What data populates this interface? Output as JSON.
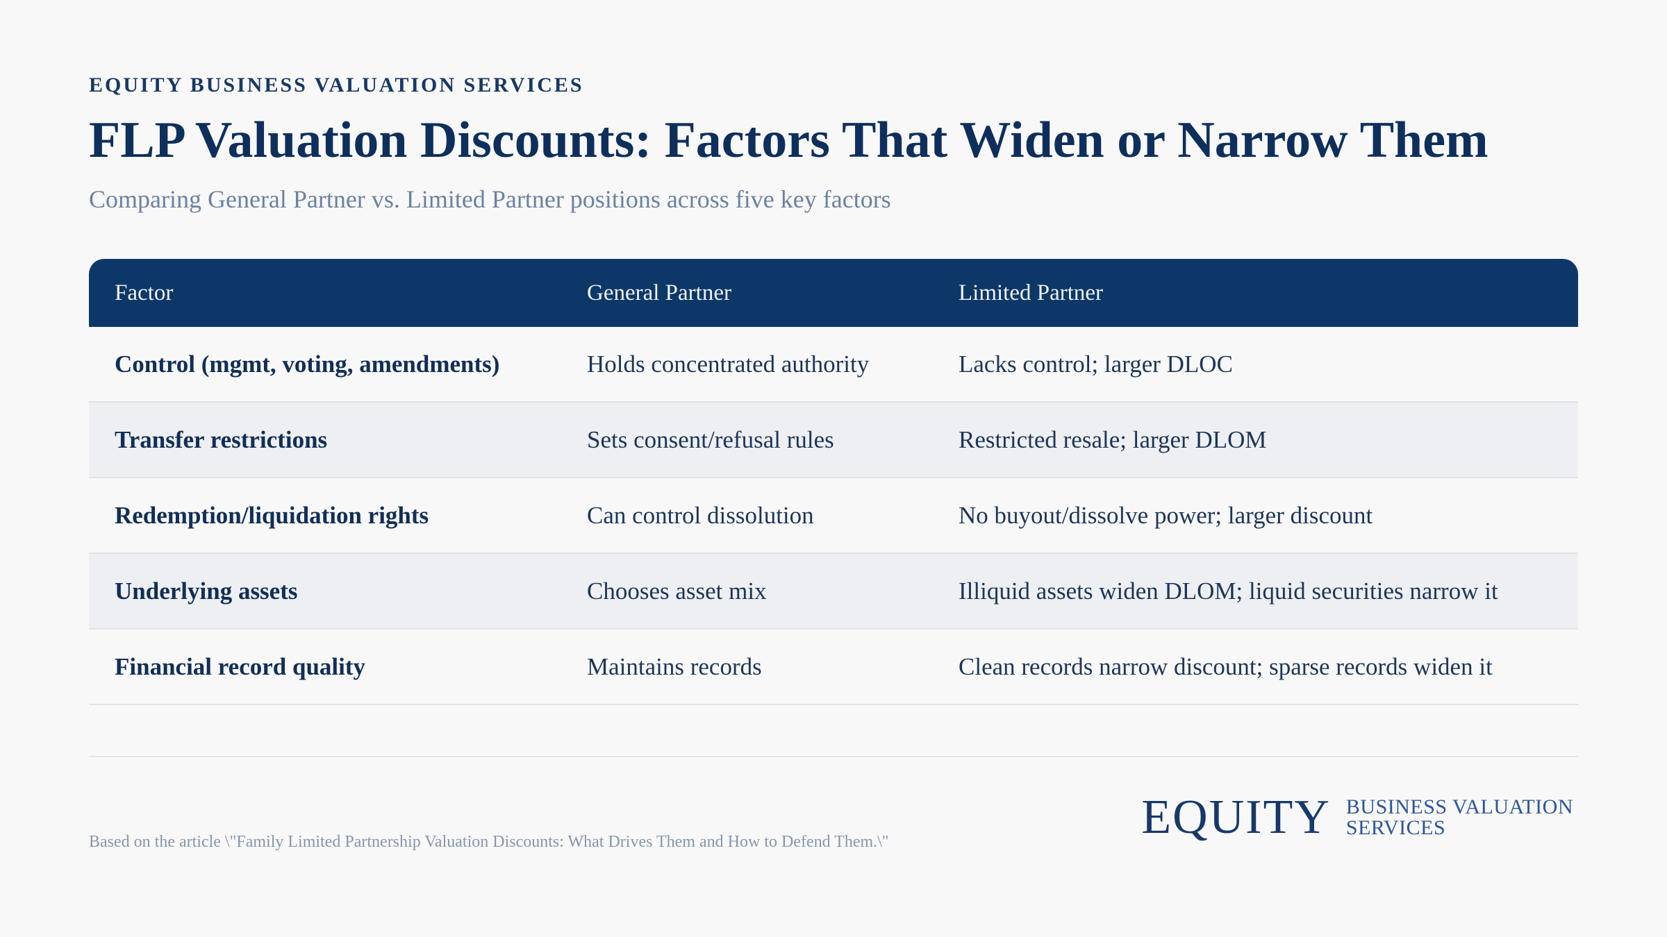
{
  "header": {
    "eyebrow": "EQUITY BUSINESS VALUATION SERVICES",
    "title": "FLP Valuation Discounts: Factors That Widen or Narrow Them",
    "subtitle": "Comparing General Partner vs. Limited Partner positions across five key factors"
  },
  "table": {
    "columns": [
      "Factor",
      "General Partner",
      "Limited Partner"
    ],
    "rows": [
      {
        "factor": "Control (mgmt, voting, amendments)",
        "gp": "Holds concentrated authority",
        "lp": "Lacks control; larger DLOC"
      },
      {
        "factor": "Transfer restrictions",
        "gp": "Sets consent/refusal rules",
        "lp": "Restricted resale; larger DLOM"
      },
      {
        "factor": "Redemption/liquidation rights",
        "gp": "Can control dissolution",
        "lp": "No buyout/dissolve power; larger discount"
      },
      {
        "factor": "Underlying assets",
        "gp": "Chooses asset mix",
        "lp": "Illiquid assets widen DLOM; liquid securities narrow it"
      },
      {
        "factor": "Financial record quality",
        "gp": "Maintains records",
        "lp": "Clean records narrow discount; sparse records widen it"
      }
    ]
  },
  "footer": {
    "note": "Based on the article \\\"Family Limited Partnership Valuation Discounts: What Drives Them and How to Defend Them.\\\"",
    "logo_word": "EQUITY",
    "logo_line1": "BUSINESS VALUATION",
    "logo_line2": "SERVICES"
  },
  "colors": {
    "header_bg": "#0d3766",
    "title": "#0e2f5c",
    "subtitle": "#6b82a0",
    "alt_row": "#eeeff2"
  }
}
